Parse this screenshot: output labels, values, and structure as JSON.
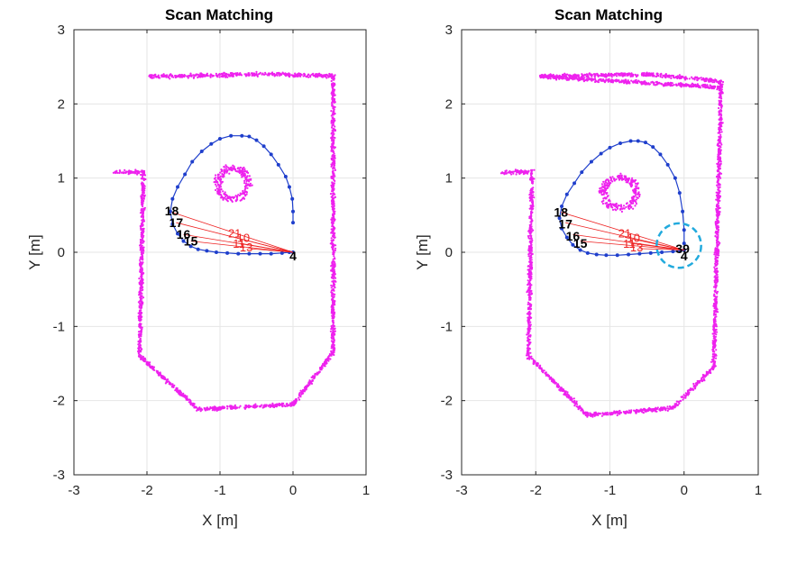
{
  "chart_data": [
    {
      "type": "scatter",
      "title": "Scan Matching",
      "xlabel": "X [m]",
      "ylabel": "Y [m]",
      "xlim": [
        -3,
        1
      ],
      "ylim": [
        -3,
        3
      ],
      "xticks": [
        "-3",
        "-2",
        "-1",
        "0",
        "1"
      ],
      "yticks": [
        "-3",
        "-2",
        "-1",
        "0",
        "1",
        "2",
        "3"
      ],
      "grid": true,
      "colors": {
        "map": "#ee22ee",
        "trajectory": "#1f3fcc",
        "loop_closure": "#ee2222",
        "highlight": "#22aadd"
      },
      "map_segments": [
        {
          "x": [
            -1.95,
            -0.45
          ],
          "y": [
            2.37,
            2.4
          ]
        },
        {
          "x": [
            -0.45,
            0.55
          ],
          "y": [
            2.4,
            2.38
          ]
        },
        {
          "x": [
            0.55,
            0.55
          ],
          "y": [
            2.38,
            -1.35
          ]
        },
        {
          "x": [
            0.55,
            0.0
          ],
          "y": [
            -1.35,
            -2.05
          ]
        },
        {
          "x": [
            0.0,
            -1.3
          ],
          "y": [
            -2.05,
            -2.12
          ]
        },
        {
          "x": [
            -1.3,
            -2.1
          ],
          "y": [
            -2.12,
            -1.4
          ]
        },
        {
          "x": [
            -2.1,
            -2.05
          ],
          "y": [
            -1.4,
            1.08
          ]
        },
        {
          "x": [
            -2.05,
            -2.45
          ],
          "y": [
            1.08,
            1.08
          ]
        }
      ],
      "map_ellipse": {
        "cx": -0.82,
        "cy": 0.92,
        "rx": 0.22,
        "ry": 0.22
      },
      "trajectory": {
        "x": [
          0.0,
          0.0,
          -0.01,
          -0.05,
          -0.1,
          -0.2,
          -0.3,
          -0.4,
          -0.5,
          -0.6,
          -0.7,
          -0.85,
          -1.0,
          -1.12,
          -1.25,
          -1.38,
          -1.48,
          -1.58,
          -1.65,
          -1.68,
          -1.65,
          -1.58,
          -1.5,
          -1.4,
          -1.3,
          -1.18,
          -1.05,
          -0.9,
          -0.75,
          -0.6,
          -0.45,
          -0.3,
          -0.15,
          -0.05,
          0.0
        ],
        "y": [
          0.4,
          0.55,
          0.72,
          0.88,
          1.02,
          1.18,
          1.32,
          1.43,
          1.51,
          1.56,
          1.57,
          1.57,
          1.53,
          1.46,
          1.36,
          1.22,
          1.05,
          0.88,
          0.72,
          0.55,
          0.38,
          0.25,
          0.15,
          0.08,
          0.04,
          0.02,
          0.0,
          -0.01,
          -0.02,
          -0.02,
          -0.02,
          -0.02,
          -0.01,
          0.0,
          0.0
        ]
      },
      "loop_closures": [
        {
          "from": "4",
          "to": "18"
        },
        {
          "from": "4",
          "to": "17"
        },
        {
          "from": "4",
          "to": "16"
        },
        {
          "from": "4",
          "to": "15"
        },
        {
          "from": "4",
          "to": "21"
        }
      ],
      "point_labels": [
        {
          "text": "18",
          "x": -1.66,
          "y": 0.56
        },
        {
          "text": "17",
          "x": -1.6,
          "y": 0.4
        },
        {
          "text": "16",
          "x": -1.5,
          "y": 0.24
        },
        {
          "text": "15",
          "x": -1.4,
          "y": 0.15
        },
        {
          "text": "4",
          "x": 0.0,
          "y": -0.05
        }
      ],
      "red_labels": [
        {
          "text": "21",
          "x": -0.8,
          "y": 0.26
        },
        {
          "text": "10",
          "x": -0.68,
          "y": 0.2
        },
        {
          "text": "11",
          "x": -0.74,
          "y": 0.12
        },
        {
          "text": "13",
          "x": -0.64,
          "y": 0.07
        }
      ]
    },
    {
      "type": "scatter",
      "title": "Scan Matching",
      "xlabel": "X [m]",
      "ylabel": "Y [m]",
      "xlim": [
        -3,
        1
      ],
      "ylim": [
        -3,
        3
      ],
      "xticks": [
        "-3",
        "-2",
        "-1",
        "0",
        "1"
      ],
      "yticks": [
        "-3",
        "-2",
        "-1",
        "0",
        "1",
        "2",
        "3"
      ],
      "grid": true,
      "colors": {
        "map": "#ee22ee",
        "trajectory": "#1f3fcc",
        "loop_closure": "#ee2222",
        "highlight": "#22aadd"
      },
      "map_segments": [
        {
          "x": [
            -1.95,
            -0.45
          ],
          "y": [
            2.37,
            2.4
          ]
        },
        {
          "x": [
            -0.45,
            0.5
          ],
          "y": [
            2.4,
            2.3
          ]
        },
        {
          "x": [
            0.5,
            0.4
          ],
          "y": [
            2.3,
            -1.55
          ]
        },
        {
          "x": [
            0.4,
            -0.15
          ],
          "y": [
            -1.55,
            -2.1
          ]
        },
        {
          "x": [
            -0.15,
            -1.3
          ],
          "y": [
            -2.1,
            -2.2
          ]
        },
        {
          "x": [
            -1.3,
            -2.1
          ],
          "y": [
            -2.2,
            -1.4
          ]
        },
        {
          "x": [
            -2.1,
            -2.05
          ],
          "y": [
            -1.4,
            1.08
          ]
        },
        {
          "x": [
            -2.05,
            -2.45
          ],
          "y": [
            1.08,
            1.08
          ]
        },
        {
          "x": [
            -1.95,
            0.5
          ],
          "y": [
            2.37,
            2.22
          ]
        }
      ],
      "map_ellipse": {
        "cx": -0.86,
        "cy": 0.8,
        "rx": 0.24,
        "ry": 0.22
      },
      "trajectory": {
        "x": [
          0.0,
          0.0,
          -0.02,
          -0.06,
          -0.12,
          -0.22,
          -0.32,
          -0.42,
          -0.52,
          -0.62,
          -0.72,
          -0.86,
          -1.0,
          -1.12,
          -1.25,
          -1.38,
          -1.48,
          -1.58,
          -1.65,
          -1.68,
          -1.65,
          -1.58,
          -1.5,
          -1.4,
          -1.3,
          -1.18,
          -1.05,
          -0.9,
          -0.75,
          -0.6,
          -0.45,
          -0.3,
          -0.15,
          -0.05,
          0.0
        ],
        "y": [
          0.12,
          0.3,
          0.55,
          0.8,
          1.0,
          1.18,
          1.32,
          1.42,
          1.48,
          1.5,
          1.5,
          1.47,
          1.41,
          1.33,
          1.22,
          1.08,
          0.93,
          0.78,
          0.62,
          0.46,
          0.32,
          0.2,
          0.1,
          0.03,
          -0.01,
          -0.03,
          -0.04,
          -0.04,
          -0.03,
          -0.02,
          -0.01,
          0.0,
          0.01,
          0.02,
          0.03
        ]
      },
      "loop_closures": [
        {
          "from": "39",
          "to": "18"
        },
        {
          "from": "39",
          "to": "17"
        },
        {
          "from": "39",
          "to": "16"
        },
        {
          "from": "39",
          "to": "15"
        },
        {
          "from": "39",
          "to": "21"
        }
      ],
      "point_labels": [
        {
          "text": "18",
          "x": -1.66,
          "y": 0.54
        },
        {
          "text": "17",
          "x": -1.6,
          "y": 0.38
        },
        {
          "text": "16",
          "x": -1.5,
          "y": 0.22
        },
        {
          "text": "15",
          "x": -1.4,
          "y": 0.12
        },
        {
          "text": "39",
          "x": -0.02,
          "y": 0.05
        },
        {
          "text": "4",
          "x": 0.0,
          "y": -0.05
        }
      ],
      "red_labels": [
        {
          "text": "21",
          "x": -0.8,
          "y": 0.26
        },
        {
          "text": "10",
          "x": -0.68,
          "y": 0.2
        },
        {
          "text": "11",
          "x": -0.74,
          "y": 0.12
        },
        {
          "text": "13",
          "x": -0.64,
          "y": 0.07
        }
      ],
      "highlight_circle": {
        "cx": -0.07,
        "cy": 0.09,
        "r": 0.3
      }
    }
  ]
}
